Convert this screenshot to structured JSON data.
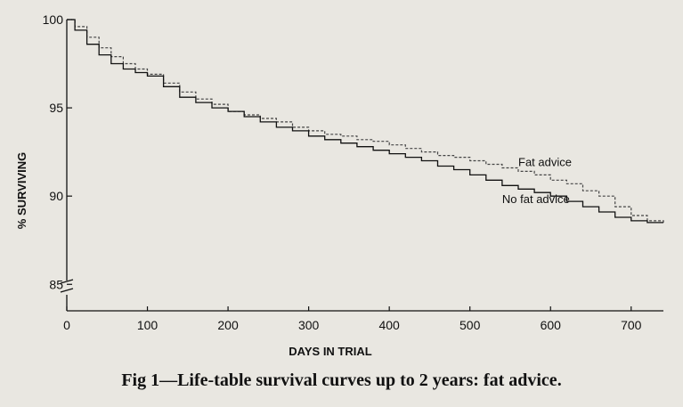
{
  "caption": "Fig 1—Life-table survival curves up to 2 years: fat advice.",
  "chart_data": {
    "type": "line",
    "title": "",
    "xlabel": "DAYS IN TRIAL",
    "ylabel": "% SURVIVING",
    "xlim": [
      0,
      740
    ],
    "ylim": [
      83.5,
      100
    ],
    "y_axis_break": true,
    "grid": false,
    "x_ticks": [
      0,
      100,
      200,
      300,
      400,
      500,
      600,
      700
    ],
    "y_ticks": [
      85,
      90,
      95,
      100
    ],
    "series": [
      {
        "name": "Fat advice",
        "x": [
          0,
          10,
          25,
          40,
          55,
          70,
          85,
          100,
          120,
          140,
          160,
          180,
          200,
          220,
          240,
          260,
          280,
          300,
          320,
          340,
          360,
          380,
          400,
          420,
          440,
          460,
          480,
          500,
          520,
          540,
          560,
          580,
          600,
          620,
          640,
          660,
          680,
          700,
          720,
          740
        ],
        "y": [
          100,
          99.6,
          99.0,
          98.4,
          97.9,
          97.5,
          97.2,
          96.9,
          96.4,
          95.9,
          95.5,
          95.2,
          94.8,
          94.6,
          94.4,
          94.2,
          93.9,
          93.7,
          93.5,
          93.4,
          93.2,
          93.1,
          92.9,
          92.7,
          92.5,
          92.3,
          92.2,
          92.0,
          91.8,
          91.6,
          91.4,
          91.2,
          90.9,
          90.7,
          90.3,
          90.0,
          89.4,
          88.9,
          88.6,
          88.5
        ]
      },
      {
        "name": "No fat advice",
        "x": [
          0,
          10,
          25,
          40,
          55,
          70,
          85,
          100,
          120,
          140,
          160,
          180,
          200,
          220,
          240,
          260,
          280,
          300,
          320,
          340,
          360,
          380,
          400,
          420,
          440,
          460,
          480,
          500,
          520,
          540,
          560,
          580,
          600,
          620,
          640,
          660,
          680,
          700,
          720,
          740
        ],
        "y": [
          100,
          99.4,
          98.6,
          98.0,
          97.5,
          97.2,
          97.0,
          96.8,
          96.2,
          95.6,
          95.3,
          95.0,
          94.8,
          94.5,
          94.2,
          93.9,
          93.7,
          93.4,
          93.2,
          93.0,
          92.8,
          92.6,
          92.4,
          92.2,
          92.0,
          91.7,
          91.5,
          91.2,
          90.9,
          90.6,
          90.4,
          90.2,
          90.0,
          89.7,
          89.4,
          89.1,
          88.8,
          88.6,
          88.5,
          88.5
        ]
      }
    ],
    "annotations": [
      {
        "text": "Fat advice",
        "x": 560,
        "y": 91.7
      },
      {
        "text": "No fat advice",
        "x": 540,
        "y": 89.6
      }
    ]
  }
}
